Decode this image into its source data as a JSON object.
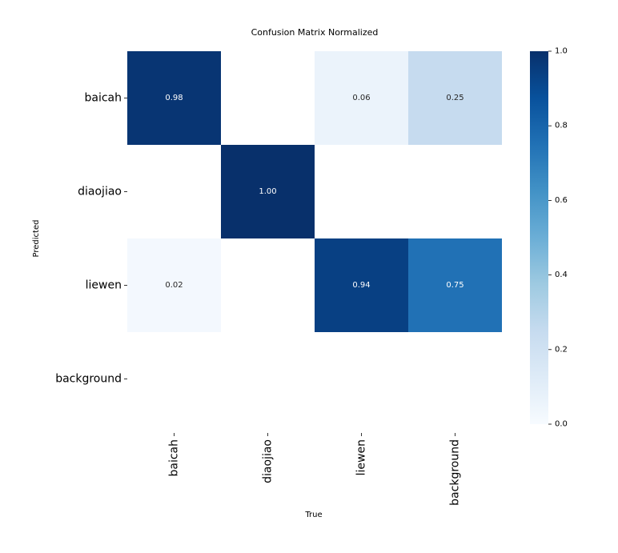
{
  "chart_data": {
    "type": "heatmap",
    "title": "Confusion Matrix Normalized",
    "xlabel": "True",
    "ylabel": "Predicted",
    "x_categories": [
      "baicah",
      "diaojiao",
      "liewen",
      "background"
    ],
    "y_categories": [
      "baicah",
      "diaojiao",
      "liewen",
      "background"
    ],
    "values": [
      [
        0.98,
        null,
        0.06,
        0.25
      ],
      [
        null,
        1.0,
        null,
        null
      ],
      [
        0.02,
        null,
        0.94,
        0.75
      ],
      [
        null,
        null,
        null,
        null
      ]
    ],
    "annotation_format": "0.00",
    "colormap": "Blues",
    "colorscale_stops": [
      "#f7fbff",
      "#deebf7",
      "#c6dbef",
      "#9ecae1",
      "#6baed6",
      "#4292c6",
      "#2171b5",
      "#08519c",
      "#08306b"
    ],
    "vmin": 0.0,
    "vmax": 1.0,
    "colorbar_ticks": [
      "0.0",
      "0.2",
      "0.4",
      "0.6",
      "0.8",
      "1.0"
    ],
    "grid": false
  }
}
